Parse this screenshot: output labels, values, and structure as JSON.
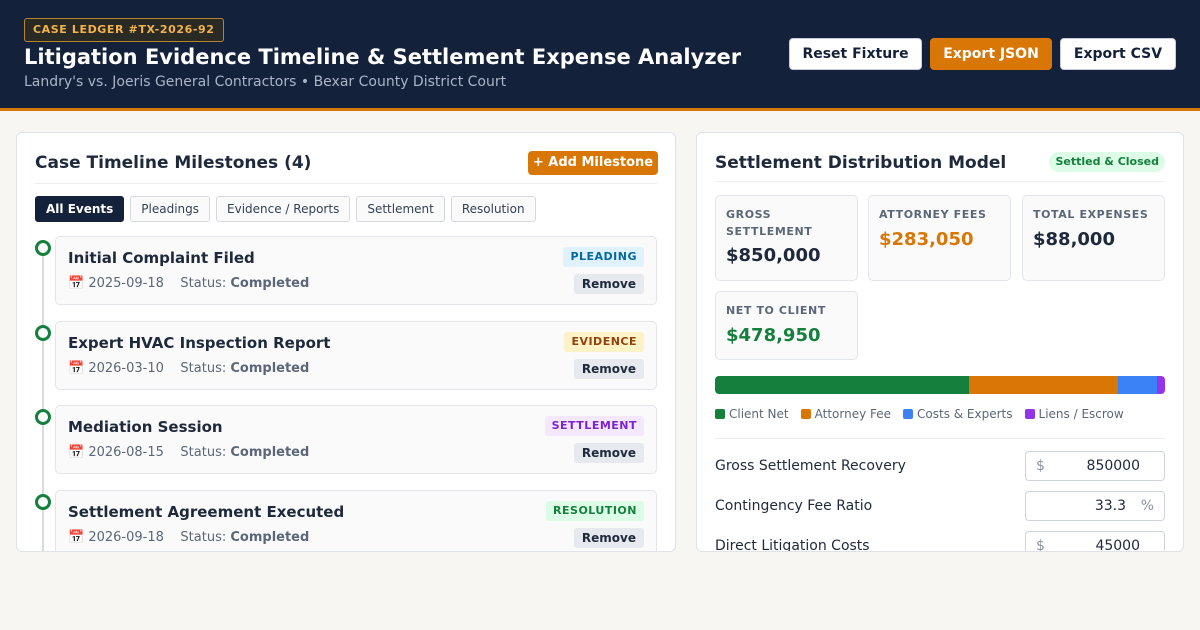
{
  "header": {
    "case_badge": "CASE LEDGER #TX-2026-92",
    "title": "Litigation Evidence Timeline & Settlement Expense Analyzer",
    "subtitle": "Landry's vs. Joeris General Contractors • Bexar County District Court",
    "buttons": {
      "reset": "Reset Fixture",
      "export_json": "Export JSON",
      "export_csv": "Export CSV"
    },
    "accent_color": "#d97706"
  },
  "timeline": {
    "title": "Case Timeline Milestones (4)",
    "add_label": "+ Add Milestone",
    "filters": [
      {
        "label": "All Events",
        "active": true
      },
      {
        "label": "Pleadings",
        "active": false
      },
      {
        "label": "Evidence / Reports",
        "active": false
      },
      {
        "label": "Settlement",
        "active": false
      },
      {
        "label": "Resolution",
        "active": false
      }
    ],
    "status_prefix": "Status:",
    "remove_label": "Remove",
    "calendar_icon": "📅",
    "milestones": [
      {
        "title": "Initial Complaint Filed",
        "date": "2025-09-18",
        "status": "Completed",
        "tag": "PLEADING",
        "tag_color": "#0369a1",
        "tag_bg": "#e0f2fe"
      },
      {
        "title": "Expert HVAC Inspection Report",
        "date": "2026-03-10",
        "status": "Completed",
        "tag": "EVIDENCE",
        "tag_color": "#92400e",
        "tag_bg": "#fef3c7"
      },
      {
        "title": "Mediation Session",
        "date": "2026-08-15",
        "status": "Completed",
        "tag": "SETTLEMENT",
        "tag_color": "#7e22ce",
        "tag_bg": "#f3e8ff"
      },
      {
        "title": "Settlement Agreement Executed",
        "date": "2026-09-18",
        "status": "Completed",
        "tag": "RESOLUTION",
        "tag_color": "#15803d",
        "tag_bg": "#dcfce7"
      }
    ]
  },
  "settlement": {
    "title": "Settlement Distribution Model",
    "status_pill": "Settled & Closed",
    "stats": {
      "gross": {
        "label_1": "GROSS",
        "label_2": "SETTLEMENT",
        "value": "$850,000",
        "color": "#1e293b"
      },
      "fees": {
        "label": "ATTORNEY FEES",
        "value": "$283,050",
        "color": "#d97706"
      },
      "expenses": {
        "label": "TOTAL EXPENSES",
        "value": "$88,000",
        "color": "#1e293b"
      },
      "net": {
        "label": "NET TO CLIENT",
        "value": "$478,950",
        "color": "#15803d"
      }
    },
    "distribution": [
      {
        "name": "Client Net",
        "value": 478950,
        "color": "#15803d"
      },
      {
        "name": "Attorney Fee",
        "value": 283050,
        "color": "#d97706"
      },
      {
        "name": "Costs & Experts",
        "value": 73000,
        "color": "#3b82f6"
      },
      {
        "name": "Liens / Escrow",
        "value": 15000,
        "color": "#9333ea"
      }
    ],
    "inputs": [
      {
        "label": "Gross Settlement Recovery",
        "prefix": "$",
        "suffix": "",
        "value": "850000"
      },
      {
        "label": "Contingency Fee Ratio",
        "prefix": "",
        "suffix": "%",
        "value": "33.3"
      },
      {
        "label": "Direct Litigation Costs",
        "prefix": "$",
        "suffix": "",
        "value": "45000"
      }
    ]
  }
}
